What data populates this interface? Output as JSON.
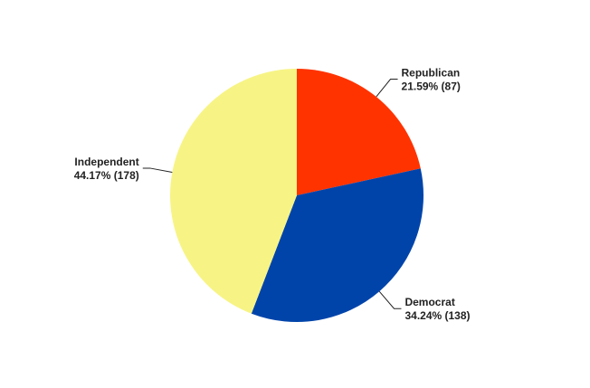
{
  "chart_data": {
    "type": "pie",
    "categories": [
      "Republican",
      "Democrat",
      "Independent"
    ],
    "values": [
      87,
      138,
      178
    ],
    "value_labels": [
      "21.59% (87)",
      "34.24% (138)",
      "44.17% (178)"
    ],
    "colors": [
      "#ff3300",
      "#0044aa",
      "#f7f485"
    ]
  }
}
